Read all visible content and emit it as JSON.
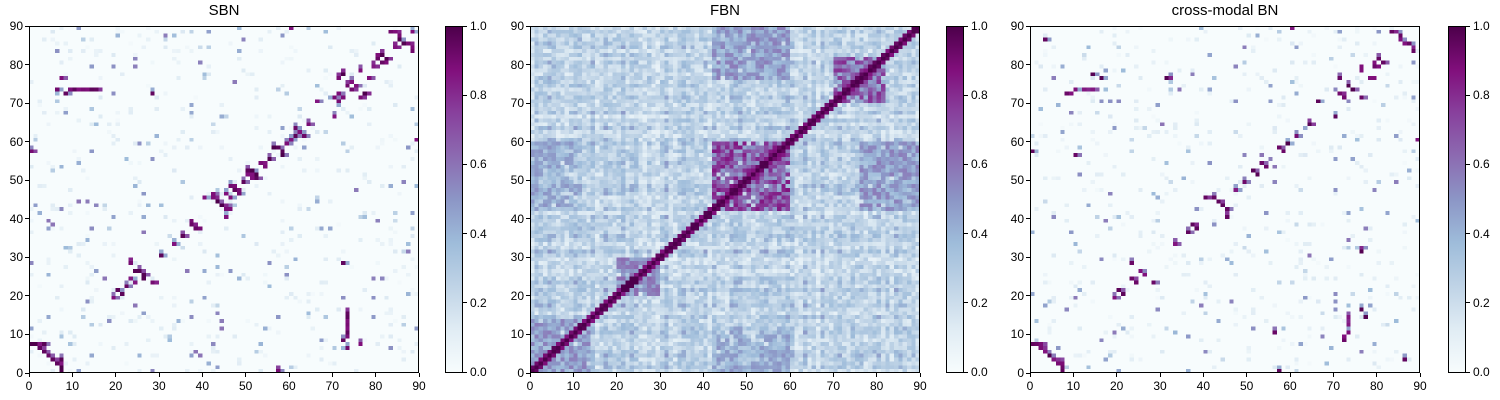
{
  "chart_data": [
    {
      "type": "heatmap",
      "title": "SBN",
      "xlim": [
        0,
        90
      ],
      "ylim": [
        0,
        90
      ],
      "xticks": [
        "0",
        "10",
        "20",
        "30",
        "40",
        "50",
        "60",
        "70",
        "80",
        "90"
      ],
      "yticks": [
        "0",
        "10",
        "20",
        "30",
        "40",
        "50",
        "60",
        "70",
        "80",
        "90"
      ],
      "colorbar": {
        "range": [
          0,
          1
        ],
        "ticks": [
          "0.0",
          "0.2",
          "0.4",
          "0.6",
          "0.8",
          "1.0"
        ]
      },
      "colormap": "BuPu",
      "grid": false,
      "matrix_size": 90,
      "pattern": "sparse-symmetric",
      "strong_cells": [
        [
          0,
          7
        ],
        [
          1,
          7
        ],
        [
          2,
          7
        ],
        [
          3,
          7
        ],
        [
          2,
          6
        ],
        [
          4,
          4
        ],
        [
          5,
          3
        ],
        [
          6,
          2
        ],
        [
          6,
          73
        ],
        [
          7,
          76
        ],
        [
          8,
          72
        ],
        [
          9,
          73
        ],
        [
          10,
          73
        ],
        [
          11,
          73
        ],
        [
          12,
          73
        ],
        [
          13,
          73
        ],
        [
          14,
          73
        ],
        [
          15,
          73
        ],
        [
          20,
          21
        ],
        [
          22,
          22
        ],
        [
          23,
          24
        ],
        [
          24,
          26
        ],
        [
          25,
          26
        ],
        [
          26,
          25
        ],
        [
          28,
          23
        ],
        [
          33,
          33
        ],
        [
          35,
          35
        ],
        [
          37,
          38
        ],
        [
          38,
          37
        ],
        [
          40,
          45
        ],
        [
          42,
          46
        ],
        [
          43,
          44
        ],
        [
          44,
          43
        ],
        [
          45,
          42
        ],
        [
          46,
          45
        ],
        [
          47,
          47
        ],
        [
          48,
          46
        ],
        [
          49,
          49
        ],
        [
          50,
          51
        ],
        [
          51,
          52
        ],
        [
          52,
          50
        ],
        [
          53,
          54
        ],
        [
          55,
          55
        ],
        [
          57,
          58
        ],
        [
          58,
          56
        ],
        [
          59,
          59
        ],
        [
          60,
          60
        ],
        [
          61,
          61
        ],
        [
          62,
          62
        ],
        [
          63,
          61
        ],
        [
          66,
          70
        ],
        [
          70,
          71
        ],
        [
          71,
          72
        ],
        [
          72,
          28
        ],
        [
          74,
          73
        ],
        [
          75,
          74
        ],
        [
          76,
          71
        ],
        [
          77,
          72
        ],
        [
          78,
          76
        ],
        [
          80,
          82
        ],
        [
          81,
          80
        ],
        [
          82,
          81
        ],
        [
          83,
          88
        ],
        [
          84,
          84
        ],
        [
          85,
          86
        ],
        [
          86,
          85
        ],
        [
          87,
          85
        ],
        [
          88,
          88
        ],
        [
          89,
          60
        ],
        [
          0,
          57
        ],
        [
          57,
          0
        ],
        [
          19,
          19
        ],
        [
          30,
          30
        ],
        [
          64,
          64
        ],
        [
          79,
          79
        ]
      ]
    },
    {
      "type": "heatmap",
      "title": "FBN",
      "xlim": [
        0,
        90
      ],
      "ylim": [
        0,
        90
      ],
      "xticks": [
        "0",
        "10",
        "20",
        "30",
        "40",
        "50",
        "60",
        "70",
        "80",
        "90"
      ],
      "yticks": [
        "0",
        "10",
        "20",
        "30",
        "40",
        "50",
        "60",
        "70",
        "80",
        "90"
      ],
      "colorbar": {
        "range": [
          0,
          1
        ],
        "ticks": [
          "0.0",
          "0.2",
          "0.4",
          "0.6",
          "0.8",
          "1.0"
        ]
      },
      "colormap": "BuPu",
      "grid": false,
      "matrix_size": 90,
      "pattern": "dense-symmetric",
      "dense_blocks": [
        [
          42,
          60,
          42,
          60,
          0.75
        ],
        [
          70,
          82,
          70,
          82,
          0.7
        ],
        [
          0,
          14,
          0,
          14,
          0.5
        ],
        [
          20,
          30,
          20,
          30,
          0.55
        ],
        [
          42,
          60,
          0,
          10,
          0.45
        ],
        [
          0,
          10,
          42,
          60,
          0.45
        ],
        [
          42,
          60,
          76,
          90,
          0.5
        ],
        [
          76,
          90,
          42,
          60,
          0.5
        ]
      ],
      "diagonal_value": 1.0
    },
    {
      "type": "heatmap",
      "title": "cross-modal BN",
      "xlim": [
        0,
        90
      ],
      "ylim": [
        0,
        90
      ],
      "xticks": [
        "0",
        "10",
        "20",
        "30",
        "40",
        "50",
        "60",
        "70",
        "80",
        "90"
      ],
      "yticks": [
        "0",
        "10",
        "20",
        "30",
        "40",
        "50",
        "60",
        "70",
        "80",
        "90"
      ],
      "colorbar": {
        "range": [
          0,
          1
        ],
        "ticks": [
          "0.0",
          "0.2",
          "0.4",
          "0.6",
          "0.8",
          "1.0"
        ]
      },
      "colormap": "BuPu",
      "grid": false,
      "matrix_size": 90,
      "pattern": "sparse-symmetric",
      "strong_cells": [
        [
          0,
          7
        ],
        [
          1,
          7
        ],
        [
          2,
          7
        ],
        [
          4,
          4
        ],
        [
          5,
          3
        ],
        [
          6,
          2
        ],
        [
          8,
          72
        ],
        [
          10,
          73
        ],
        [
          12,
          73
        ],
        [
          14,
          73
        ],
        [
          20,
          21
        ],
        [
          23,
          24
        ],
        [
          25,
          26
        ],
        [
          28,
          23
        ],
        [
          33,
          33
        ],
        [
          37,
          38
        ],
        [
          40,
          45
        ],
        [
          43,
          44
        ],
        [
          45,
          42
        ],
        [
          47,
          47
        ],
        [
          49,
          49
        ],
        [
          51,
          52
        ],
        [
          53,
          54
        ],
        [
          57,
          58
        ],
        [
          59,
          59
        ],
        [
          61,
          61
        ],
        [
          66,
          70
        ],
        [
          71,
          72
        ],
        [
          74,
          73
        ],
        [
          76,
          71
        ],
        [
          78,
          76
        ],
        [
          81,
          80
        ],
        [
          83,
          88
        ],
        [
          85,
          86
        ],
        [
          87,
          85
        ],
        [
          89,
          60
        ],
        [
          0,
          57
        ],
        [
          19,
          19
        ],
        [
          64,
          64
        ],
        [
          79,
          79
        ],
        [
          36,
          36
        ],
        [
          10,
          56
        ],
        [
          14,
          77
        ],
        [
          16,
          76
        ],
        [
          31,
          76
        ],
        [
          3,
          86
        ]
      ]
    }
  ]
}
